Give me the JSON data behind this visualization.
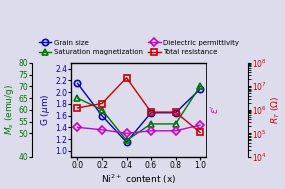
{
  "x": [
    0.0,
    0.2,
    0.4,
    0.6,
    0.8,
    1.0
  ],
  "grain_size": [
    2.15,
    1.6,
    1.15,
    1.65,
    1.65,
    2.05
  ],
  "saturation_mag": [
    65,
    60,
    47,
    54,
    54,
    70
  ],
  "dielectric_perm": [
    180000.0,
    142000.0,
    100000.0,
    128000.0,
    128000.0,
    225000.0
  ],
  "total_resistance": [
    1200000.0,
    1850000.0,
    23000000.0,
    800000.0,
    800000.0,
    110000.0
  ],
  "grain_color": "#0000cc",
  "sat_mag_color": "#007700",
  "diel_color": "#cc00cc",
  "resist_color": "#cc0000",
  "xlabel": "Ni$^{2+}$ content (x)",
  "ylabel_left1": "$M_s$ (emu/g)",
  "ylabel_left2": "G ($\\mu$m)",
  "ylabel_right1": "$\\varepsilon$$^{\\prime}$",
  "ylabel_right2": "$R_T$ ($\\Omega$)",
  "ylim_grain": [
    0.9,
    2.5
  ],
  "ylim_ms": [
    40,
    80
  ],
  "ylim_log": [
    10000.0,
    100000000.0
  ],
  "xticks": [
    0.0,
    0.2,
    0.4,
    0.6,
    0.8,
    1.0
  ],
  "xticklabels": [
    "0.0",
    "0.2",
    "0.4",
    "0.6",
    "0.8",
    "1.0"
  ],
  "legend_grain": "Grain size",
  "legend_ms": "Saturation magnetization",
  "legend_diel": "Dielectric permittivity",
  "legend_resist": "Total resistance",
  "bg_color": "#dcdcec"
}
